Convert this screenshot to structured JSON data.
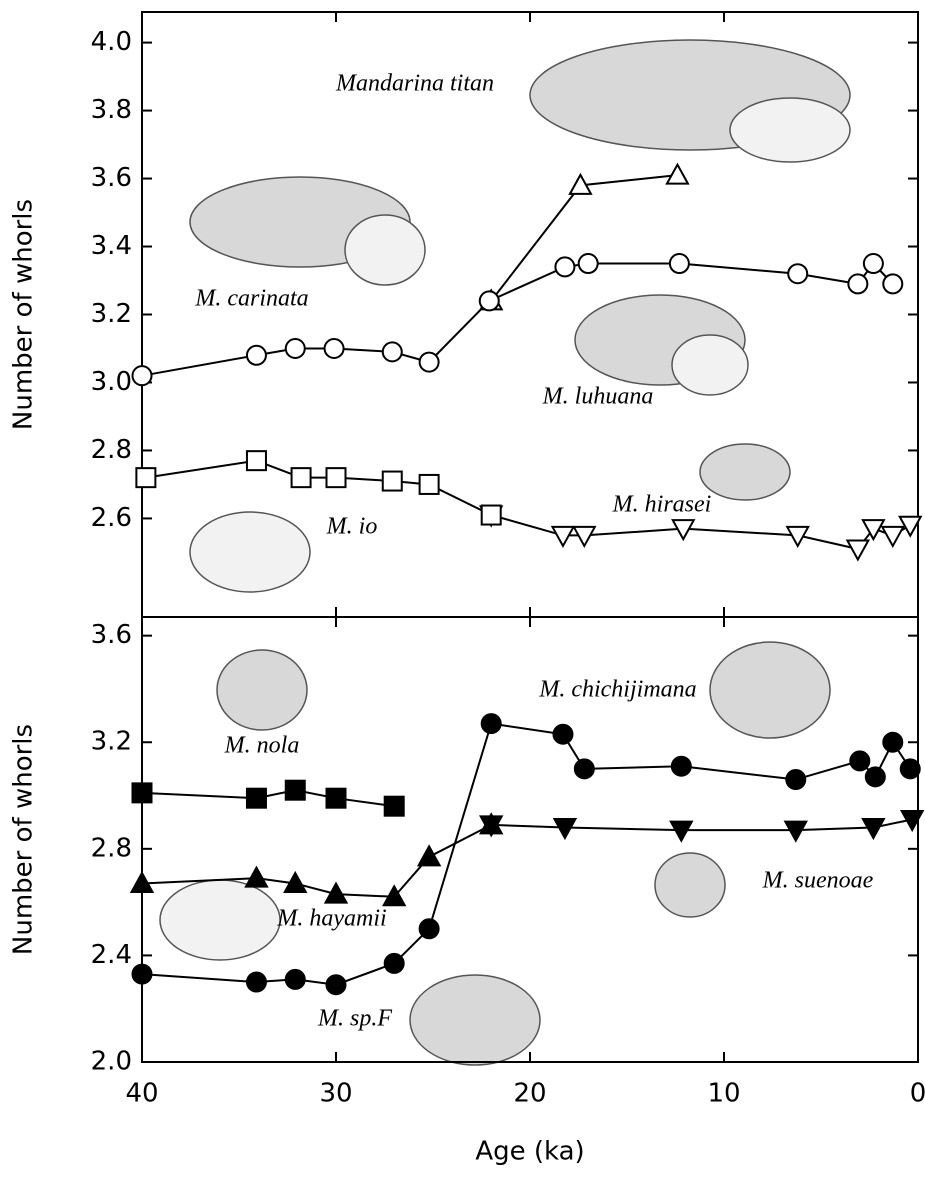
{
  "chart_data": [
    {
      "type": "line",
      "ylabel": "Number of whorls",
      "xlim": [
        40,
        0
      ],
      "xticks": [
        40,
        30,
        20,
        10,
        0
      ],
      "ylim": [
        2.31,
        4.09
      ],
      "yticks": [
        {
          "value": 2.6,
          "label": "2.6"
        },
        {
          "value": 2.8,
          "label": "2.8"
        },
        {
          "value": 3.0,
          "label": "3.0"
        },
        {
          "value": 3.2,
          "label": "3.2"
        },
        {
          "value": 3.4,
          "label": "3.4"
        },
        {
          "value": 3.6,
          "label": "3.6"
        },
        {
          "value": 3.8,
          "label": "3.8"
        },
        {
          "value": 4.0,
          "label": "4.0"
        }
      ],
      "annotations": [
        "Mandarina titan",
        "M. carinata",
        "M. luhuana",
        "M. hirasei",
        "M. io"
      ],
      "series": [
        {
          "marker": "triangle-up-open",
          "color": "#000000",
          "x": [
            22,
            17.4,
            12.4
          ],
          "values": [
            3.24,
            3.58,
            3.61
          ]
        },
        {
          "marker": "circle-open",
          "color": "#000000",
          "x": [
            40,
            34.1,
            32.1,
            30.1,
            27.1,
            25.2,
            22.1,
            18.2,
            17.0,
            12.3,
            6.2,
            3.1,
            2.3,
            1.3
          ],
          "values": [
            3.02,
            3.08,
            3.1,
            3.1,
            3.09,
            3.06,
            3.24,
            3.34,
            3.35,
            3.35,
            3.32,
            3.29,
            3.35,
            3.29
          ]
        },
        {
          "marker": "triangle-down-open",
          "color": "#000000",
          "x": [
            22,
            18.3,
            17.2,
            12.1,
            6.2,
            3.1,
            2.3,
            1.3,
            0.4
          ],
          "values": [
            2.61,
            2.55,
            2.55,
            2.57,
            2.55,
            2.51,
            2.57,
            2.55,
            2.58
          ]
        },
        {
          "marker": "square-open",
          "color": "#000000",
          "x": [
            39.8,
            34.1,
            31.8,
            30,
            27.1,
            25.2,
            22
          ],
          "values": [
            2.72,
            2.77,
            2.72,
            2.72,
            2.71,
            2.7,
            2.61
          ]
        }
      ]
    },
    {
      "type": "line",
      "ylabel": "Number of whorls",
      "xlabel": "Age (ka)",
      "xlim": [
        40,
        0
      ],
      "xticks": [
        40,
        30,
        20,
        10,
        0
      ],
      "ylim": [
        2.0,
        3.67
      ],
      "yticks": [
        {
          "value": 2.0,
          "label": "2.0"
        },
        {
          "value": 2.4,
          "label": "2.4"
        },
        {
          "value": 2.8,
          "label": "2.8"
        },
        {
          "value": 3.2,
          "label": "3.2"
        },
        {
          "value": 3.6,
          "label": "3.6"
        }
      ],
      "annotations": [
        "M. nola",
        "M. chichijimana",
        "M. suenoae",
        "M. hayamii",
        "M. sp.F"
      ],
      "series": [
        {
          "marker": "square-filled",
          "color": "#000000",
          "x": [
            40,
            34.1,
            32.1,
            30,
            27
          ],
          "values": [
            3.01,
            2.99,
            3.02,
            2.99,
            2.96
          ]
        },
        {
          "marker": "triangle-up-filled",
          "color": "#000000",
          "x": [
            40,
            34.1,
            32.1,
            30,
            27,
            25.2,
            22
          ],
          "values": [
            2.67,
            2.69,
            2.67,
            2.63,
            2.62,
            2.77,
            2.89
          ]
        },
        {
          "marker": "triangle-down-filled",
          "color": "#000000",
          "x": [
            22,
            18.2,
            12.2,
            6.3,
            2.3,
            0.3
          ],
          "values": [
            2.89,
            2.88,
            2.87,
            2.87,
            2.88,
            2.91
          ]
        },
        {
          "marker": "circle-filled",
          "color": "#000000",
          "x": [
            40,
            34.1,
            32.1,
            30,
            27,
            25.2,
            22,
            18.3,
            17.2,
            12.2,
            6.3,
            3,
            2.2,
            1.3,
            0.4
          ],
          "values": [
            2.33,
            2.3,
            2.31,
            2.29,
            2.37,
            2.5,
            3.27,
            3.23,
            3.1,
            3.11,
            3.06,
            3.13,
            3.07,
            3.2,
            3.1
          ]
        }
      ]
    }
  ]
}
